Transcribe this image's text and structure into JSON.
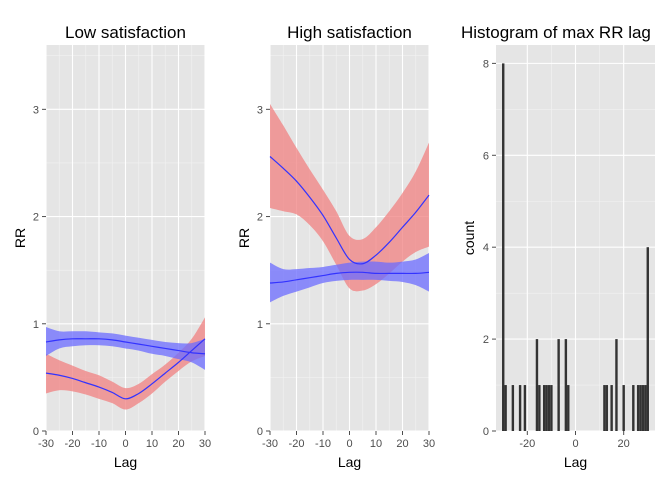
{
  "chart_data": [
    {
      "type": "line",
      "title": "Low satisfaction",
      "xlabel": "Lag",
      "ylabel": "RR",
      "xlim": [
        -30,
        30
      ],
      "ylim": [
        0,
        3.6
      ],
      "xticks": [
        -30,
        -20,
        -10,
        0,
        10,
        20,
        30
      ],
      "yticks": [
        0,
        1,
        2,
        3
      ],
      "grid": true,
      "series": [
        {
          "color": "#f08080",
          "x": [
            -30,
            -25,
            -20,
            -15,
            -10,
            -5,
            0,
            5,
            10,
            15,
            20,
            25,
            30
          ],
          "y": [
            0.54,
            0.52,
            0.49,
            0.45,
            0.41,
            0.36,
            0.3,
            0.35,
            0.44,
            0.54,
            0.64,
            0.75,
            0.86
          ],
          "lower": [
            0.35,
            0.38,
            0.37,
            0.34,
            0.3,
            0.26,
            0.2,
            0.26,
            0.35,
            0.46,
            0.56,
            0.65,
            0.7
          ],
          "upper": [
            0.72,
            0.66,
            0.61,
            0.56,
            0.52,
            0.46,
            0.4,
            0.44,
            0.53,
            0.62,
            0.73,
            0.86,
            1.06
          ]
        },
        {
          "color": "#6b6bff",
          "x": [
            -30,
            -25,
            -20,
            -15,
            -10,
            -5,
            0,
            5,
            10,
            15,
            20,
            25,
            30
          ],
          "y": [
            0.83,
            0.85,
            0.86,
            0.86,
            0.86,
            0.85,
            0.83,
            0.81,
            0.79,
            0.77,
            0.75,
            0.73,
            0.72
          ],
          "lower": [
            0.7,
            0.77,
            0.79,
            0.8,
            0.8,
            0.79,
            0.77,
            0.75,
            0.72,
            0.7,
            0.67,
            0.64,
            0.57
          ],
          "upper": [
            0.97,
            0.93,
            0.93,
            0.93,
            0.92,
            0.91,
            0.89,
            0.87,
            0.85,
            0.83,
            0.82,
            0.82,
            0.86
          ]
        }
      ]
    },
    {
      "type": "line",
      "title": "High satisfaction",
      "xlabel": "Lag",
      "ylabel": "RR",
      "xlim": [
        -30,
        30
      ],
      "ylim": [
        0,
        3.6
      ],
      "xticks": [
        -30,
        -20,
        -10,
        0,
        10,
        20,
        30
      ],
      "yticks": [
        0,
        1,
        2,
        3
      ],
      "grid": true,
      "series": [
        {
          "color": "#f08080",
          "x": [
            -30,
            -25,
            -20,
            -15,
            -10,
            -5,
            0,
            5,
            10,
            15,
            20,
            25,
            30
          ],
          "y": [
            2.56,
            2.45,
            2.33,
            2.18,
            2.01,
            1.8,
            1.6,
            1.56,
            1.64,
            1.76,
            1.9,
            2.04,
            2.2
          ],
          "lower": [
            2.08,
            2.05,
            2.02,
            1.92,
            1.77,
            1.55,
            1.33,
            1.31,
            1.37,
            1.47,
            1.58,
            1.67,
            1.72
          ],
          "upper": [
            3.05,
            2.85,
            2.64,
            2.44,
            2.25,
            2.05,
            1.82,
            1.79,
            1.9,
            2.05,
            2.22,
            2.42,
            2.69
          ]
        },
        {
          "color": "#6b6bff",
          "x": [
            -30,
            -25,
            -20,
            -15,
            -10,
            -5,
            0,
            5,
            10,
            15,
            20,
            25,
            30
          ],
          "y": [
            1.38,
            1.39,
            1.41,
            1.43,
            1.45,
            1.47,
            1.48,
            1.48,
            1.47,
            1.47,
            1.47,
            1.47,
            1.48
          ],
          "lower": [
            1.2,
            1.26,
            1.3,
            1.34,
            1.38,
            1.4,
            1.41,
            1.41,
            1.41,
            1.4,
            1.39,
            1.36,
            1.3
          ],
          "upper": [
            1.57,
            1.51,
            1.51,
            1.52,
            1.53,
            1.55,
            1.57,
            1.58,
            1.58,
            1.57,
            1.58,
            1.6,
            1.66
          ]
        }
      ]
    },
    {
      "type": "bar",
      "title": "Histogram of max RR lag",
      "xlabel": "Lag",
      "ylabel": "count",
      "xlim": [
        -33,
        33
      ],
      "ylim": [
        0,
        8.4
      ],
      "xticks": [
        -20,
        0,
        20
      ],
      "yticks": [
        0,
        2,
        4,
        6,
        8
      ],
      "grid": true,
      "bin_width": 1,
      "bins": [
        {
          "x": -30,
          "count": 8
        },
        {
          "x": -29,
          "count": 1
        },
        {
          "x": -26,
          "count": 1
        },
        {
          "x": -23,
          "count": 1
        },
        {
          "x": -21,
          "count": 1
        },
        {
          "x": -16,
          "count": 2
        },
        {
          "x": -15,
          "count": 1
        },
        {
          "x": -13,
          "count": 1
        },
        {
          "x": -12,
          "count": 1
        },
        {
          "x": -11,
          "count": 1
        },
        {
          "x": -10,
          "count": 1
        },
        {
          "x": -7,
          "count": 2
        },
        {
          "x": -4,
          "count": 2
        },
        {
          "x": -3,
          "count": 1
        },
        {
          "x": 12,
          "count": 1
        },
        {
          "x": 13,
          "count": 1
        },
        {
          "x": 15,
          "count": 1
        },
        {
          "x": 17,
          "count": 2
        },
        {
          "x": 20,
          "count": 1
        },
        {
          "x": 24,
          "count": 1
        },
        {
          "x": 26,
          "count": 1
        },
        {
          "x": 27,
          "count": 1
        },
        {
          "x": 28,
          "count": 1
        },
        {
          "x": 29,
          "count": 1
        },
        {
          "x": 30,
          "count": 4
        }
      ]
    }
  ]
}
